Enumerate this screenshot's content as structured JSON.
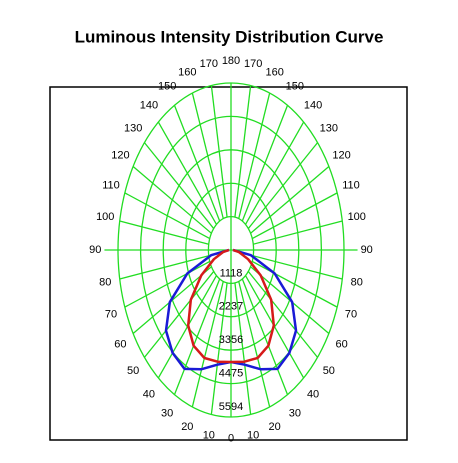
{
  "chart_data": {
    "type": "polar",
    "title": "Luminous Intensity Distribution Curve",
    "angles": [
      0,
      10,
      20,
      30,
      40,
      50,
      60,
      70,
      80,
      90
    ],
    "series": [
      {
        "color": "#1a1ad6",
        "values": [
          3750,
          3900,
          4250,
          4600,
          4500,
          4200,
          3500,
          2300,
          1000,
          100
        ]
      },
      {
        "color": "#d61a1a",
        "values": [
          3750,
          3800,
          3850,
          3700,
          3300,
          2600,
          1700,
          900,
          400,
          100
        ]
      }
    ],
    "rlim": [
      0,
      5594
    ],
    "rticks": [
      1118,
      2237,
      3356,
      4475,
      5594
    ],
    "thetalim": [
      0,
      180
    ],
    "thetaticks": [
      0,
      10,
      20,
      30,
      40,
      50,
      60,
      70,
      80,
      90,
      100,
      110,
      120,
      130,
      140,
      150,
      160,
      170,
      180
    ],
    "grid_color": "#22dd22"
  }
}
